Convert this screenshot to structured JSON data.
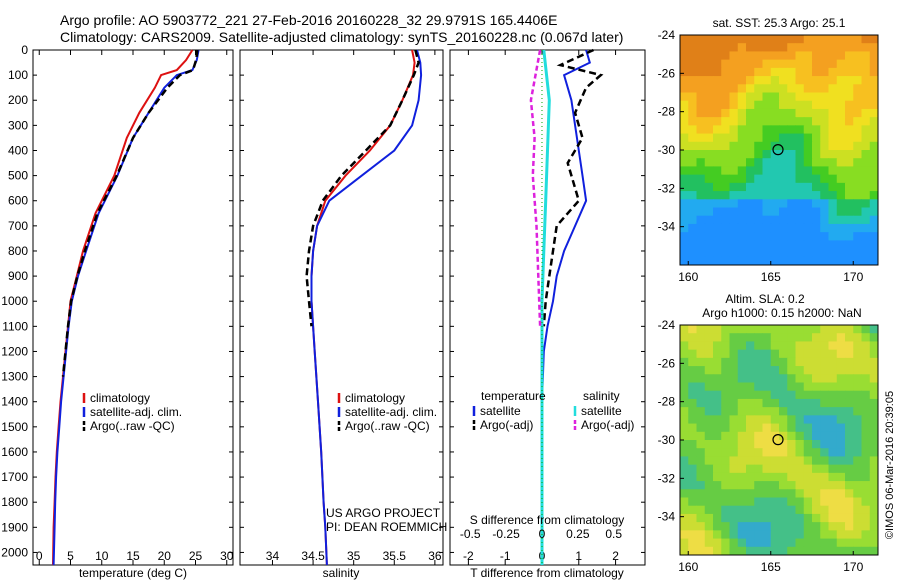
{
  "header": {
    "line1": "Argo profile: AO 5903772_221 27-Feb-2016 20160228_32 29.9791S 165.4406E",
    "line2": "Climatology: CARS2009. Satellite-adjusted climatology: synTS_20160228.nc (0.067d later)"
  },
  "credits": {
    "project": "US ARGO PROJECT",
    "pi": "PI: DEAN ROEMMICH",
    "stamp": "©IMOS 06-Mar-2016 20:39:05"
  },
  "colors": {
    "climatology": "#dd1111",
    "satellite": "#1020dd",
    "argo": "#000000",
    "salinity_satellite": "#22dddd",
    "salinity_argo": "#dd22dd"
  },
  "depth_axis": {
    "ylim": [
      0,
      2050
    ],
    "ticks": [
      0,
      100,
      200,
      300,
      400,
      500,
      600,
      700,
      800,
      900,
      1000,
      1100,
      1200,
      1300,
      1400,
      1500,
      1600,
      1700,
      1800,
      1900,
      2000
    ]
  },
  "chart_data": [
    {
      "type": "line",
      "id": "temperature",
      "xlabel": "temperature (deg C)",
      "xlim": [
        -1,
        31
      ],
      "xticks": [
        0,
        5,
        10,
        15,
        20,
        25,
        30
      ],
      "legend": [
        "climatology",
        "satellite-adj. clim.",
        "Argo(..raw -QC)"
      ],
      "series": [
        {
          "name": "climatology",
          "x": [
            24.5,
            23.5,
            22,
            19.5,
            18.5,
            16,
            14,
            12,
            9,
            7,
            6,
            5,
            4.6,
            4.2,
            3.8,
            3.4,
            3.1,
            2.8,
            2.6,
            2.45,
            2.3,
            2.2
          ],
          "y": [
            0,
            40,
            80,
            100,
            150,
            250,
            350,
            500,
            650,
            800,
            900,
            1000,
            1100,
            1200,
            1300,
            1400,
            1500,
            1600,
            1700,
            1800,
            1900,
            2050
          ]
        },
        {
          "name": "satellite-adj. clim.",
          "x": [
            25.5,
            25.2,
            24.5,
            22,
            20,
            17.5,
            15,
            12.5,
            9.5,
            7.5,
            6.2,
            5.2,
            4.7,
            4.3,
            3.9,
            3.5,
            3.2,
            2.9,
            2.7,
            2.55,
            2.45,
            2.3
          ],
          "y": [
            0,
            40,
            80,
            100,
            150,
            250,
            350,
            500,
            650,
            800,
            900,
            1000,
            1100,
            1200,
            1300,
            1400,
            1500,
            1600,
            1700,
            1800,
            1900,
            2050
          ]
        },
        {
          "name": "Argo(..raw -QC)",
          "x": [
            25.3,
            25.1,
            24.6,
            22.5,
            20.5,
            17.5,
            15,
            12.4,
            9.3,
            7.3,
            6.1,
            5.1,
            4.6,
            4.2,
            3.8
          ],
          "y": [
            0,
            40,
            80,
            100,
            150,
            250,
            350,
            500,
            650,
            800,
            900,
            1000,
            1100,
            1200,
            1300
          ]
        }
      ]
    },
    {
      "type": "line",
      "id": "salinity",
      "xlabel": "salinity",
      "xlim": [
        33.6,
        36.1
      ],
      "xticks": [
        34,
        34.5,
        35,
        35.5,
        36
      ],
      "legend": [
        "climatology",
        "satellite-adj. clim.",
        "Argo(..raw -QC)"
      ],
      "series": [
        {
          "name": "climatology",
          "x": [
            35.72,
            35.75,
            35.73,
            35.6,
            35.45,
            35.2,
            34.9,
            34.65,
            34.55,
            34.5,
            34.48,
            34.48,
            34.52,
            34.56,
            34.6,
            34.63,
            34.65,
            34.67
          ],
          "y": [
            0,
            50,
            100,
            200,
            300,
            400,
            500,
            600,
            700,
            800,
            900,
            1000,
            1200,
            1400,
            1600,
            1800,
            1900,
            2050
          ]
        },
        {
          "name": "satellite-adj. clim.",
          "x": [
            35.78,
            35.82,
            35.83,
            35.8,
            35.72,
            35.5,
            35.1,
            34.7,
            34.55,
            34.5,
            34.48,
            34.48,
            34.52,
            34.56,
            34.6,
            34.63,
            34.65,
            34.67
          ],
          "y": [
            0,
            50,
            100,
            200,
            300,
            400,
            500,
            600,
            700,
            800,
            900,
            1000,
            1200,
            1400,
            1600,
            1800,
            1900,
            2050
          ]
        },
        {
          "name": "Argo(..raw -QC)",
          "x": [
            35.76,
            35.8,
            35.74,
            35.6,
            35.45,
            35.15,
            34.85,
            34.62,
            34.5,
            34.45,
            34.42,
            34.45,
            34.48
          ],
          "y": [
            0,
            50,
            100,
            200,
            300,
            400,
            500,
            600,
            700,
            800,
            900,
            1000,
            1100
          ]
        }
      ]
    },
    {
      "type": "line",
      "id": "difference",
      "xlabel": "T difference from climatology",
      "x2label": "S difference from climatology",
      "xlim": [
        -2.5,
        2.8
      ],
      "xticks": [
        -2,
        -1,
        0,
        1,
        2
      ],
      "x2ticks": [
        "-0.5",
        "-0.25",
        "0",
        "0.25",
        "0.5"
      ],
      "legend": {
        "temperature_title": "temperature",
        "salinity_title": "salinity",
        "items": [
          "satellite",
          "Argo(-adj)",
          "satellite",
          "Argo(-adj)"
        ]
      },
      "series": [
        {
          "name": "satellite",
          "x": [
            1.2,
            1.3,
            0.6,
            0.8,
            0.9,
            1,
            1.1,
            1.2,
            0.9,
            0.6,
            0.4,
            0.3,
            0.15,
            0.05,
            0
          ],
          "y": [
            0,
            50,
            100,
            200,
            300,
            400,
            500,
            600,
            700,
            800,
            900,
            1000,
            1100,
            1200,
            1400
          ]
        },
        {
          "name": "Argo(-adj)",
          "x": [
            1.4,
            0.5,
            1.6,
            1.2,
            0.9,
            1.1,
            0.7,
            1,
            0.4,
            0.3,
            0.2,
            0.1,
            0.05
          ],
          "y": [
            0,
            60,
            100,
            150,
            250,
            350,
            450,
            600,
            700,
            800,
            900,
            1000,
            1100
          ]
        },
        {
          "name": "satellite",
          "x": [
            0.05,
            0.2,
            0.15,
            0.1,
            0.05,
            0,
            0,
            0
          ],
          "y": [
            0,
            200,
            400,
            600,
            800,
            1000,
            1500,
            2050
          ]
        },
        {
          "name": "Argo(-adj)",
          "x": [
            -0.05,
            -0.3,
            -0.2,
            -0.25,
            -0.15,
            -0.1,
            -0.05
          ],
          "y": [
            0,
            200,
            350,
            500,
            700,
            900,
            1100
          ]
        }
      ]
    },
    {
      "type": "heatmap",
      "id": "sst_map",
      "title": "sat. SST: 25.3 Argo: 25.1",
      "xlim": [
        159.5,
        171.5
      ],
      "ylim": [
        -36,
        -24
      ],
      "xticks": [
        160,
        165,
        170
      ],
      "yticks": [
        -24,
        -26,
        -28,
        -30,
        -32,
        -34
      ],
      "marker": {
        "lon": 165.44,
        "lat": -29.98
      }
    },
    {
      "type": "heatmap",
      "id": "sla_map",
      "title1": "Altim. SLA: 0.2",
      "title2": "Argo h1000: 0.15 h2000: NaN",
      "xlim": [
        159.5,
        171.5
      ],
      "ylim": [
        -36,
        -24
      ],
      "xticks": [
        160,
        165,
        170
      ],
      "yticks": [
        -24,
        -26,
        -28,
        -30,
        -32,
        -34
      ],
      "marker": {
        "lon": 165.44,
        "lat": -29.98
      }
    }
  ]
}
